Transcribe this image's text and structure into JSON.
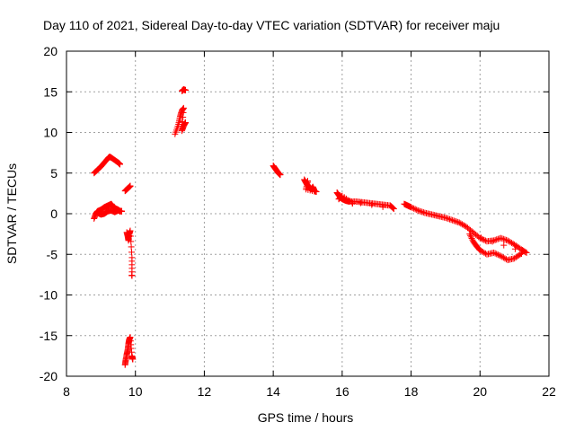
{
  "chart_data": {
    "type": "scatter",
    "title": "Day 110 of 2021, Sidereal Day-to-day VTEC variation (SDTVAR) for receiver maju",
    "xlabel": "GPS time / hours",
    "ylabel": "SDTVAR / TECUs",
    "xlim": [
      8,
      22
    ],
    "ylim": [
      -20,
      20
    ],
    "xticks": [
      8,
      10,
      12,
      14,
      16,
      18,
      20,
      22
    ],
    "yticks": [
      -20,
      -15,
      -10,
      -5,
      0,
      5,
      10,
      15,
      20
    ],
    "grid": true,
    "marker": "+",
    "marker_color": "#ff0000",
    "series_segments": [
      {
        "name": "arc-upper-left",
        "points": [
          [
            8.8,
            5.0
          ],
          [
            8.9,
            5.4
          ],
          [
            9.0,
            5.8
          ],
          [
            9.1,
            6.3
          ],
          [
            9.2,
            6.8
          ],
          [
            9.25,
            7.0
          ],
          [
            9.3,
            6.9
          ],
          [
            9.4,
            6.6
          ],
          [
            9.5,
            6.3
          ],
          [
            9.55,
            6.1
          ]
        ]
      },
      {
        "name": "arc-near-zero-left",
        "points": [
          [
            8.8,
            -0.6
          ],
          [
            8.85,
            0.0
          ],
          [
            8.9,
            0.3
          ],
          [
            9.0,
            0.5
          ],
          [
            9.1,
            0.8
          ],
          [
            9.2,
            1.0
          ],
          [
            9.3,
            1.2
          ],
          [
            9.35,
            0.9
          ],
          [
            9.4,
            0.7
          ],
          [
            9.5,
            0.5
          ],
          [
            9.55,
            0.3
          ]
        ]
      },
      {
        "name": "arc-near-zero-left-lower",
        "points": [
          [
            8.9,
            0.1
          ],
          [
            9.0,
            -0.1
          ],
          [
            9.1,
            0.0
          ],
          [
            9.2,
            0.3
          ],
          [
            9.3,
            0.4
          ],
          [
            9.4,
            0.2
          ],
          [
            9.5,
            0.4
          ],
          [
            9.6,
            0.3
          ]
        ]
      },
      {
        "name": "arc-rising-small",
        "points": [
          [
            9.7,
            2.8
          ],
          [
            9.75,
            3.0
          ],
          [
            9.8,
            3.2
          ],
          [
            9.85,
            3.4
          ]
        ]
      },
      {
        "name": "arc-mid-drop",
        "points": [
          [
            9.75,
            -2.3
          ],
          [
            9.78,
            -2.8
          ],
          [
            9.8,
            -3.3
          ],
          [
            9.82,
            -2.5
          ],
          [
            9.85,
            -2.1
          ],
          [
            9.9,
            -5.4
          ],
          [
            9.9,
            -7.6
          ]
        ]
      },
      {
        "name": "arc-deep-low",
        "points": [
          [
            9.7,
            -18.6
          ],
          [
            9.72,
            -18.0
          ],
          [
            9.75,
            -17.3
          ],
          [
            9.78,
            -16.7
          ],
          [
            9.8,
            -16.0
          ],
          [
            9.82,
            -15.5
          ],
          [
            9.85,
            -15.2
          ],
          [
            9.9,
            -17.5
          ],
          [
            9.92,
            -17.9
          ]
        ]
      },
      {
        "name": "arc-high-mid",
        "points": [
          [
            11.15,
            9.8
          ],
          [
            11.25,
            11.0
          ],
          [
            11.3,
            12.0
          ],
          [
            11.35,
            12.7
          ],
          [
            11.4,
            13.0
          ],
          [
            11.35,
            10.2
          ],
          [
            11.4,
            10.8
          ],
          [
            11.45,
            11.2
          ]
        ]
      },
      {
        "name": "arc-peak",
        "points": [
          [
            11.35,
            15.1
          ],
          [
            11.4,
            15.3
          ],
          [
            11.45,
            15.2
          ]
        ]
      },
      {
        "name": "arc-14h",
        "points": [
          [
            14.0,
            5.9
          ],
          [
            14.05,
            5.6
          ],
          [
            14.1,
            5.3
          ],
          [
            14.15,
            5.0
          ],
          [
            14.2,
            4.8
          ]
        ]
      },
      {
        "name": "arc-15h",
        "points": [
          [
            14.9,
            4.2
          ],
          [
            14.95,
            3.8
          ],
          [
            15.0,
            3.5
          ],
          [
            15.05,
            3.2
          ],
          [
            15.1,
            3.0
          ],
          [
            15.15,
            3.3
          ],
          [
            15.2,
            2.8
          ],
          [
            15.25,
            2.7
          ],
          [
            14.95,
            3.0
          ],
          [
            15.0,
            4.0
          ]
        ]
      },
      {
        "name": "arc-16h-18h",
        "points": [
          [
            15.85,
            2.6
          ],
          [
            15.9,
            2.3
          ],
          [
            15.95,
            2.0
          ],
          [
            16.0,
            1.8
          ],
          [
            16.1,
            1.6
          ],
          [
            16.2,
            1.5
          ],
          [
            16.4,
            1.5
          ],
          [
            16.6,
            1.4
          ],
          [
            16.8,
            1.3
          ],
          [
            17.0,
            1.2
          ],
          [
            17.2,
            1.1
          ],
          [
            17.4,
            1.0
          ],
          [
            17.5,
            0.6
          ],
          [
            15.9,
            1.8
          ],
          [
            16.0,
            2.2
          ],
          [
            16.3,
            1.3
          ]
        ]
      },
      {
        "name": "arc-18h-21h",
        "points": [
          [
            17.8,
            1.2
          ],
          [
            17.9,
            1.0
          ],
          [
            18.0,
            0.8
          ],
          [
            18.2,
            0.4
          ],
          [
            18.4,
            0.1
          ],
          [
            18.6,
            -0.1
          ],
          [
            18.8,
            -0.3
          ],
          [
            19.0,
            -0.5
          ],
          [
            19.2,
            -0.8
          ],
          [
            19.4,
            -1.1
          ],
          [
            19.6,
            -1.6
          ],
          [
            19.8,
            -2.3
          ],
          [
            20.0,
            -3.0
          ],
          [
            20.2,
            -3.4
          ],
          [
            20.4,
            -3.3
          ],
          [
            20.6,
            -3.0
          ],
          [
            20.8,
            -3.3
          ],
          [
            21.0,
            -3.8
          ],
          [
            21.2,
            -4.4
          ],
          [
            21.35,
            -4.8
          ],
          [
            19.7,
            -2.5
          ],
          [
            19.8,
            -3.4
          ],
          [
            19.9,
            -4.0
          ],
          [
            20.0,
            -4.5
          ],
          [
            20.2,
            -5.0
          ],
          [
            20.4,
            -4.8
          ],
          [
            20.6,
            -5.2
          ],
          [
            20.8,
            -5.7
          ],
          [
            21.0,
            -5.5
          ],
          [
            21.2,
            -4.9
          ]
        ]
      }
    ]
  }
}
